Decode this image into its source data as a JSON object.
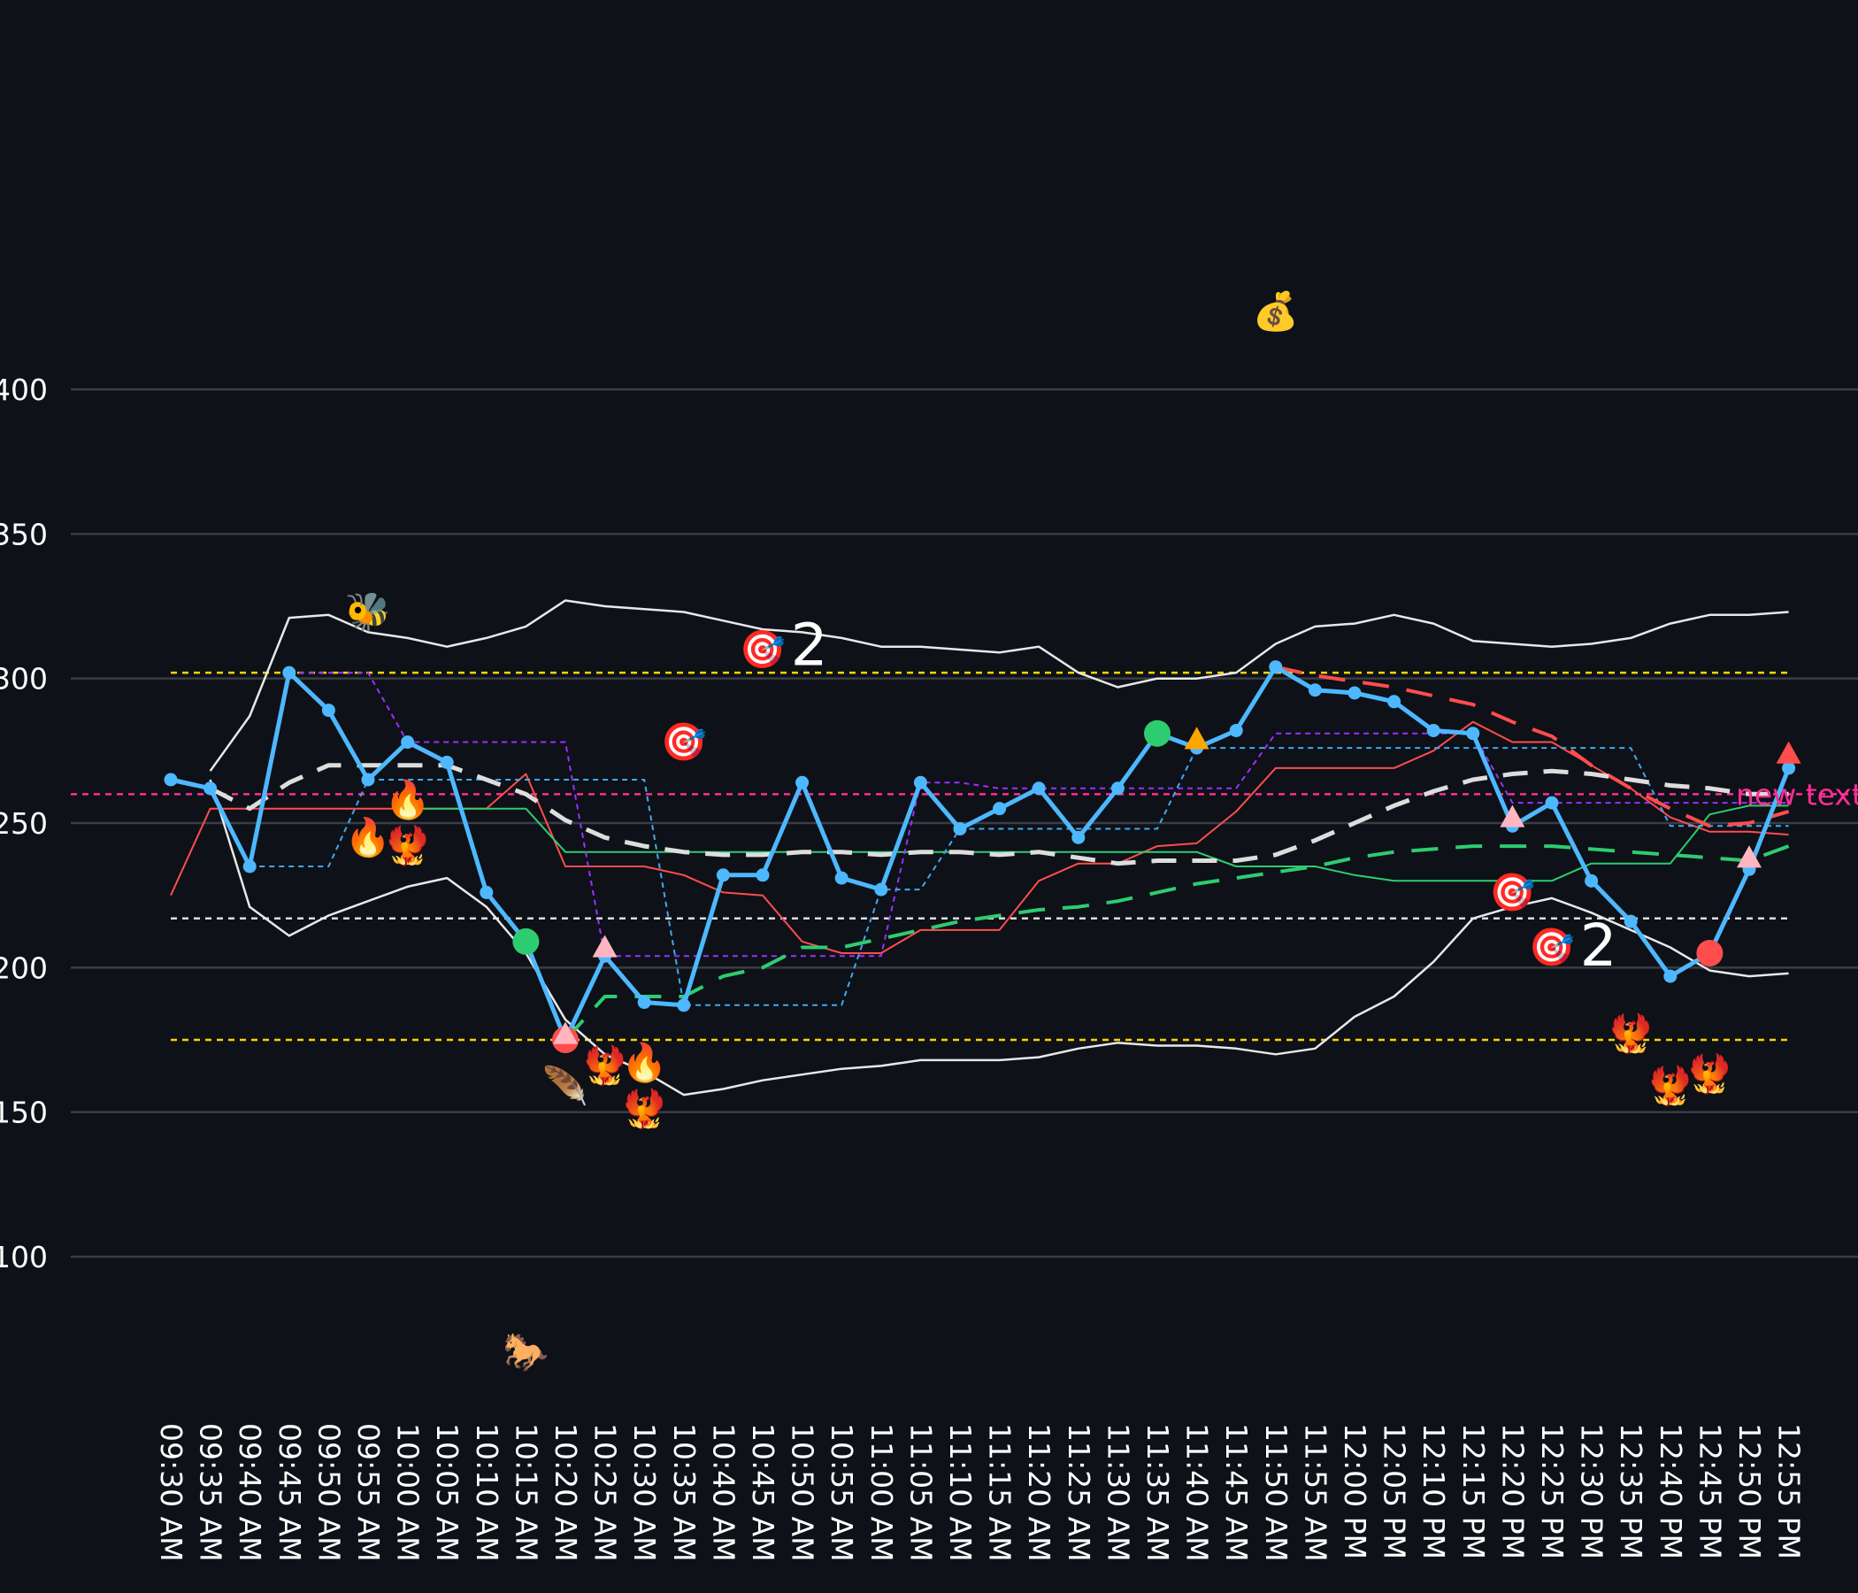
{
  "chart_data": {
    "type": "line",
    "title": "",
    "xlabel": "",
    "ylabel": "",
    "ylim": [
      55,
      535
    ],
    "yticks": [
      100,
      150,
      200,
      250,
      300,
      350,
      400
    ],
    "grid": "horizontal",
    "colors": {
      "background": "#0e1117",
      "grid": "#3a3d45",
      "price": "#4db8ff",
      "bands": "#e8e8e8",
      "red": "#ff4d4d",
      "green": "#2ecc71",
      "purple": "#9b30ff",
      "blue_dash": "#3fa9f5",
      "gold": "#ffd400",
      "white_dash": "#dddddd",
      "magenta": "#ff2d95",
      "pink": "#ffb6c1",
      "orange": "#ffa500"
    },
    "x": [
      "09:30 AM",
      "09:35 AM",
      "09:40 AM",
      "09:45 AM",
      "09:50 AM",
      "09:55 AM",
      "10:00 AM",
      "10:05 AM",
      "10:10 AM",
      "10:15 AM",
      "10:20 AM",
      "10:25 AM",
      "10:30 AM",
      "10:35 AM",
      "10:40 AM",
      "10:45 AM",
      "10:50 AM",
      "10:55 AM",
      "11:00 AM",
      "11:05 AM",
      "11:10 AM",
      "11:15 AM",
      "11:20 AM",
      "11:25 AM",
      "11:30 AM",
      "11:35 AM",
      "11:40 AM",
      "11:45 AM",
      "11:50 AM",
      "11:55 AM",
      "12:00 PM",
      "12:05 PM",
      "12:10 PM",
      "12:15 PM",
      "12:20 PM",
      "12:25 PM",
      "12:30 PM",
      "12:35 PM",
      "12:40 PM",
      "12:45 PM",
      "12:50 PM",
      "12:55 PM"
    ],
    "series": [
      {
        "key": "price",
        "values": [
          265,
          262,
          235,
          302,
          289,
          265,
          278,
          271,
          226,
          209,
          175,
          204,
          188,
          187,
          232,
          232,
          264,
          231,
          227,
          264,
          248,
          255,
          262,
          245,
          262,
          281,
          276,
          282,
          304,
          296,
          295,
          292,
          282,
          281,
          249,
          257,
          230,
          216,
          197,
          205,
          234,
          269
        ]
      },
      {
        "key": "upper_band",
        "values": [
          null,
          268,
          287,
          321,
          322,
          316,
          314,
          311,
          314,
          318,
          327,
          325,
          324,
          323,
          320,
          317,
          316,
          314,
          311,
          311,
          310,
          309,
          311,
          302,
          297,
          300,
          300,
          302,
          312,
          318,
          319,
          322,
          319,
          313,
          312,
          311,
          312,
          314,
          319,
          322,
          322,
          323
        ]
      },
      {
        "key": "lower_band",
        "values": [
          null,
          265,
          221,
          211,
          218,
          223,
          228,
          231,
          221,
          205,
          182,
          170,
          164,
          156,
          158,
          161,
          163,
          165,
          166,
          168,
          168,
          168,
          169,
          172,
          174,
          173,
          173,
          172,
          170,
          172,
          183,
          190,
          202,
          217,
          221,
          224,
          219,
          213,
          207,
          199,
          197,
          198
        ]
      },
      {
        "key": "sma_white",
        "values": [
          265,
          262,
          255,
          264,
          270,
          270,
          270,
          270,
          265,
          260,
          251,
          245,
          242,
          240,
          239,
          239,
          240,
          240,
          239,
          240,
          240,
          239,
          240,
          238,
          236,
          237,
          237,
          237,
          239,
          244,
          250,
          256,
          261,
          265,
          267,
          268,
          267,
          265,
          263,
          262,
          260,
          260
        ]
      },
      {
        "key": "red_line",
        "values": [
          225,
          255,
          255,
          255,
          255,
          255,
          255,
          255,
          255,
          267,
          235,
          235,
          235,
          232,
          226,
          225,
          209,
          205,
          205,
          213,
          213,
          213,
          230,
          236,
          236,
          242,
          243,
          254,
          269,
          269,
          269,
          269,
          275,
          285,
          278,
          278,
          270,
          262,
          252,
          247,
          247,
          246
        ]
      },
      {
        "key": "green_line",
        "values": [
          null,
          null,
          null,
          null,
          null,
          null,
          255,
          255,
          255,
          255,
          240,
          240,
          240,
          240,
          240,
          240,
          240,
          240,
          240,
          240,
          240,
          240,
          240,
          240,
          240,
          240,
          240,
          235,
          235,
          235,
          232,
          230,
          230,
          230,
          230,
          230,
          236,
          236,
          236,
          253,
          256,
          256
        ]
      },
      {
        "key": "purple_dash",
        "values": [
          null,
          null,
          null,
          302,
          302,
          302,
          278,
          278,
          278,
          278,
          278,
          204,
          204,
          204,
          204,
          204,
          204,
          204,
          204,
          264,
          264,
          262,
          262,
          262,
          262,
          262,
          262,
          262,
          281,
          281,
          281,
          281,
          281,
          281,
          257,
          257,
          257,
          257,
          257,
          257,
          257,
          257
        ]
      },
      {
        "key": "blue_dash",
        "values": [
          null,
          null,
          235,
          235,
          235,
          265,
          265,
          265,
          265,
          265,
          265,
          265,
          265,
          187,
          187,
          187,
          187,
          187,
          227,
          227,
          248,
          248,
          248,
          248,
          248,
          248,
          276,
          276,
          276,
          276,
          276,
          276,
          276,
          276,
          276,
          276,
          276,
          276,
          249,
          249,
          249,
          249
        ]
      },
      {
        "key": "green_dash",
        "values": [
          null,
          null,
          null,
          null,
          null,
          null,
          null,
          null,
          null,
          null,
          175,
          190,
          190,
          190,
          197,
          200,
          207,
          207,
          210,
          213,
          216,
          218,
          220,
          221,
          223,
          226,
          229,
          231,
          233,
          235,
          238,
          240,
          241,
          242,
          242,
          242,
          241,
          240,
          239,
          238,
          237,
          242
        ]
      },
      {
        "key": "red_dash",
        "values": [
          null,
          null,
          null,
          null,
          null,
          null,
          null,
          null,
          null,
          null,
          null,
          null,
          null,
          null,
          null,
          null,
          null,
          null,
          null,
          null,
          null,
          null,
          null,
          null,
          null,
          null,
          null,
          null,
          304,
          301,
          299,
          297,
          294,
          291,
          285,
          280,
          270,
          262,
          255,
          249,
          250,
          254
        ]
      }
    ],
    "hlines": [
      {
        "y": 302,
        "color": "gold"
      },
      {
        "y": 175,
        "color": "gold"
      },
      {
        "y": 217,
        "color": "white_dash"
      },
      {
        "y": 260,
        "color": "magenta"
      }
    ],
    "markers": [
      {
        "x": "10:15 AM",
        "y": 209,
        "shape": "circle",
        "color": "green"
      },
      {
        "x": "11:35 AM",
        "y": 281,
        "shape": "circle",
        "color": "green"
      },
      {
        "x": "10:20 AM",
        "y": 175,
        "shape": "circle",
        "color": "red"
      },
      {
        "x": "12:45 PM",
        "y": 205,
        "shape": "circle",
        "color": "red"
      },
      {
        "x": "10:20 AM",
        "y": 177,
        "shape": "triangle",
        "color": "pink"
      },
      {
        "x": "10:25 AM",
        "y": 207,
        "shape": "triangle",
        "color": "pink"
      },
      {
        "x": "12:20 PM",
        "y": 252,
        "shape": "triangle",
        "color": "pink"
      },
      {
        "x": "12:50 PM",
        "y": 238,
        "shape": "triangle",
        "color": "pink"
      },
      {
        "x": "11:40 AM",
        "y": 279,
        "shape": "triangle",
        "color": "orange"
      },
      {
        "x": "12:55 PM",
        "y": 274,
        "shape": "triangle",
        "color": "red"
      }
    ],
    "annotations": [
      {
        "x": "09:55 AM",
        "y": 323,
        "text": "🐝"
      },
      {
        "x": "10:00 AM",
        "y": 258,
        "text": "🔥"
      },
      {
        "x": "09:55 AM",
        "y": 245,
        "text": "🔥"
      },
      {
        "x": "10:00 AM",
        "y": 242,
        "text": "🐦‍🔥"
      },
      {
        "x": "10:30 AM",
        "y": 167,
        "text": "🔥"
      },
      {
        "x": "10:30 AM",
        "y": 151,
        "text": "🐦‍🔥"
      },
      {
        "x": "10:20 AM",
        "y": 159,
        "text": "🪶"
      },
      {
        "x": "10:25 AM",
        "y": 166,
        "text": "🐦‍🔥"
      },
      {
        "x": "10:15 AM",
        "y": 67,
        "text": "🐎"
      },
      {
        "x": "11:50 AM",
        "y": 427,
        "text": "💰"
      },
      {
        "x": "10:45 AM",
        "y": 310,
        "text": "🎯"
      },
      {
        "x": "10:35 AM",
        "y": 278,
        "text": "🎯"
      },
      {
        "x": "12:20 PM",
        "y": 226,
        "text": "🎯"
      },
      {
        "x": "12:25 PM",
        "y": 207,
        "text": "🎯"
      },
      {
        "x": "12:35 PM",
        "y": 177,
        "text": "🐦‍🔥"
      },
      {
        "x": "12:40 PM",
        "y": 159,
        "text": "🐦‍🔥"
      },
      {
        "x": "12:45 PM",
        "y": 163,
        "text": "🐦‍🔥"
      }
    ],
    "counts": [
      {
        "x": "10:50 AM",
        "y": 312,
        "text": "2"
      },
      {
        "x": "12:30 PM",
        "y": 208,
        "text": "2"
      }
    ],
    "line_label": {
      "y": 260,
      "text": "new text"
    }
  }
}
